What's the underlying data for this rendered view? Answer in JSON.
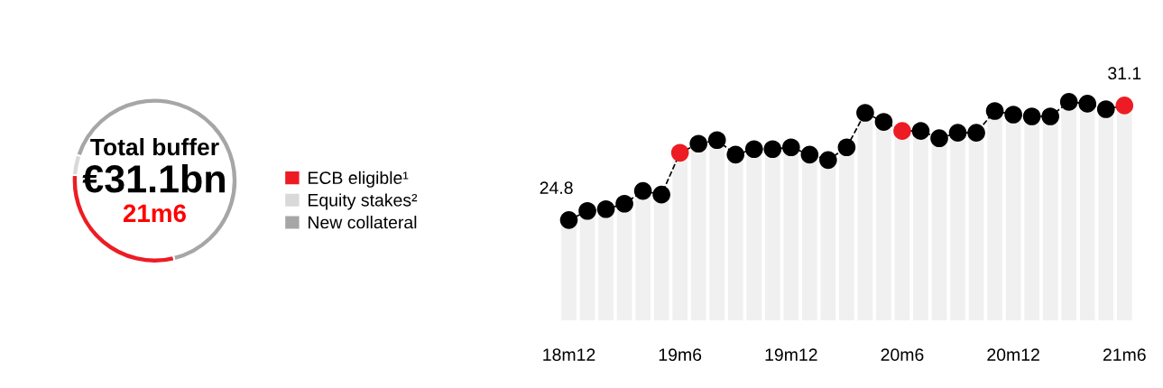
{
  "chart_data": [
    {
      "type": "donut",
      "title": "Total buffer",
      "subtitle": "€31.1bn",
      "annotations": [
        "21m6"
      ],
      "categories": [
        "ECB eligible¹",
        "Equity stakes²",
        "New collateral"
      ],
      "values": [
        30,
        4,
        66
      ],
      "colors": [
        "#ed1c24",
        "#d9d9d9",
        "#a6a6a6"
      ],
      "legend": "right"
    },
    {
      "type": "line",
      "grid": "x",
      "line_style": "dashed",
      "marker": "circle",
      "categories": [
        "18m12",
        null,
        null,
        null,
        null,
        null,
        "19m6",
        null,
        null,
        null,
        null,
        null,
        "19m12",
        null,
        null,
        null,
        null,
        null,
        "20m6",
        null,
        null,
        null,
        null,
        null,
        "20m12",
        null,
        null,
        null,
        null,
        null,
        "21m6"
      ],
      "series": [
        {
          "type": "line",
          "color": "#000000",
          "colors": [
            "#000000",
            "#000000",
            "#000000",
            "#000000",
            "#000000",
            "#000000",
            "#ed1c24",
            "#000000",
            "#000000",
            "#000000",
            "#000000",
            "#000000",
            "#000000",
            "#000000",
            "#000000",
            "#000000",
            "#000000",
            "#000000",
            "#ed1c24",
            "#000000",
            "#000000",
            "#000000",
            "#000000",
            "#000000",
            "#000000",
            "#000000",
            "#000000",
            "#000000",
            "#000000",
            "#000000",
            "#ed1c24"
          ],
          "values": [
            24.8,
            25.3,
            25.4,
            25.7,
            26.4,
            26.2,
            28.5,
            29.0,
            29.2,
            28.4,
            28.7,
            28.7,
            28.8,
            28.4,
            28.1,
            28.8,
            30.7,
            30.2,
            29.7,
            29.7,
            29.3,
            29.6,
            29.6,
            30.8,
            30.6,
            30.5,
            30.5,
            31.3,
            31.2,
            30.9,
            31.1
          ],
          "value_labels": [
            "24.8",
            null,
            null,
            null,
            null,
            null,
            null,
            null,
            null,
            null,
            null,
            null,
            null,
            null,
            null,
            null,
            null,
            null,
            null,
            null,
            null,
            null,
            null,
            null,
            null,
            null,
            null,
            null,
            null,
            null,
            "31.1"
          ]
        }
      ]
    }
  ]
}
